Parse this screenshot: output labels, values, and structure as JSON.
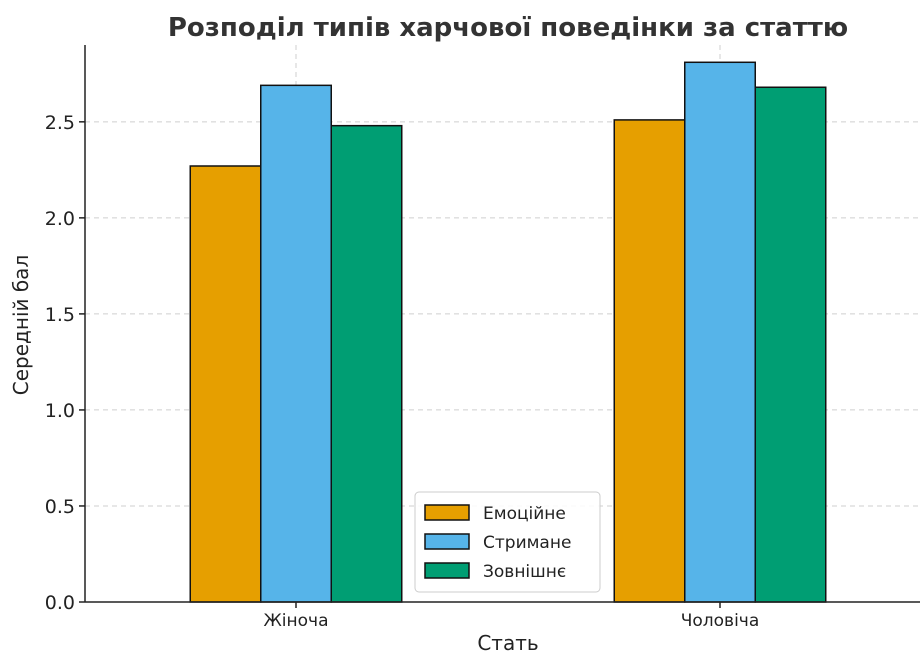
{
  "chart_data": {
    "type": "bar",
    "title": "Розподіл типів харчової поведінки за статтю",
    "xlabel": "Стать",
    "ylabel": "Середній бал",
    "categories": [
      "Жіноча",
      "Чоловіча"
    ],
    "series": [
      {
        "name": "Емоційне",
        "values": [
          2.27,
          2.51
        ],
        "color": "#E69F00"
      },
      {
        "name": "Стримане",
        "values": [
          2.69,
          2.81
        ],
        "color": "#56B4E9"
      },
      {
        "name": "Зовнішнє",
        "values": [
          2.48,
          2.68
        ],
        "color": "#009E73"
      }
    ],
    "ylim": [
      0,
      2.9
    ],
    "yticks": [
      "0.0",
      "0.5",
      "1.0",
      "1.5",
      "2.0",
      "2.5"
    ],
    "grid": true,
    "legend_position": "lower-center"
  }
}
